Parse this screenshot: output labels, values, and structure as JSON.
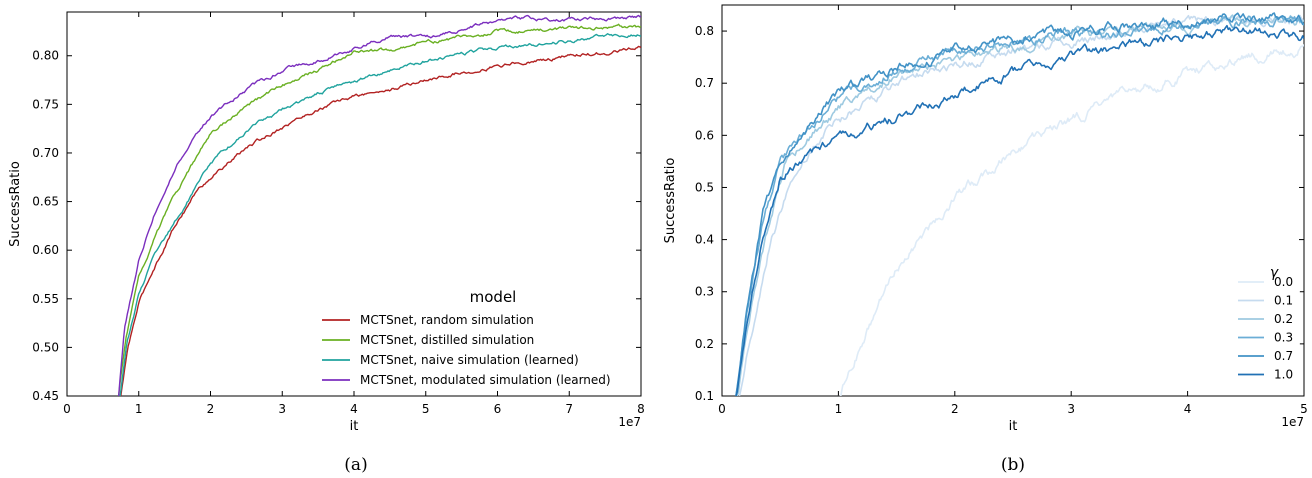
{
  "chart_data": [
    {
      "type": "line",
      "panel_label": "(a)",
      "xlabel": "it",
      "ylabel": "SuccessRatio",
      "x_multiplier_label": "1e7",
      "xlim": [
        0,
        8
      ],
      "ylim": [
        0.45,
        0.845
      ],
      "xticks": [
        0,
        1,
        2,
        3,
        4,
        5,
        6,
        7,
        8
      ],
      "yticks": [
        0.45,
        0.5,
        0.55,
        0.6,
        0.65,
        0.7,
        0.75,
        0.8
      ],
      "ytick_labels": [
        "0.45",
        "0.50",
        "0.55",
        "0.60",
        "0.65",
        "0.70",
        "0.75",
        "0.80"
      ],
      "legend": {
        "title": "model",
        "position": "lower-right"
      },
      "series": [
        {
          "name": "MCTSnet, random simulation",
          "color": "#b22222",
          "x": [
            0.75,
            0.85,
            1.0,
            1.2,
            1.5,
            1.8,
            2.0,
            2.5,
            3.0,
            3.5,
            4.0,
            4.5,
            5.0,
            5.5,
            6.0,
            6.5,
            7.0,
            7.5,
            8.0
          ],
          "y": [
            0.45,
            0.5,
            0.545,
            0.58,
            0.625,
            0.66,
            0.675,
            0.705,
            0.727,
            0.745,
            0.758,
            0.765,
            0.775,
            0.783,
            0.79,
            0.795,
            0.8,
            0.803,
            0.808
          ]
        },
        {
          "name": "MCTSnet, distilled simulation",
          "color": "#6ab023",
          "x": [
            0.72,
            0.82,
            1.0,
            1.2,
            1.5,
            1.8,
            2.0,
            2.5,
            3.0,
            3.5,
            4.0,
            4.5,
            5.0,
            5.5,
            6.0,
            6.5,
            7.0,
            7.5,
            8.0
          ],
          "y": [
            0.45,
            0.51,
            0.575,
            0.61,
            0.655,
            0.695,
            0.72,
            0.748,
            0.77,
            0.785,
            0.805,
            0.805,
            0.815,
            0.818,
            0.825,
            0.826,
            0.828,
            0.83,
            0.829
          ]
        },
        {
          "name": "MCTSnet, naive simulation (learned)",
          "color": "#20a39e",
          "x": [
            0.74,
            0.84,
            1.0,
            1.2,
            1.5,
            1.8,
            2.0,
            2.5,
            3.0,
            3.5,
            4.0,
            4.5,
            5.0,
            5.5,
            6.0,
            6.5,
            7.0,
            7.5,
            8.0
          ],
          "y": [
            0.45,
            0.505,
            0.555,
            0.59,
            0.628,
            0.665,
            0.69,
            0.722,
            0.745,
            0.762,
            0.773,
            0.785,
            0.795,
            0.802,
            0.808,
            0.812,
            0.815,
            0.82,
            0.823
          ]
        },
        {
          "name": "MCTSnet, modulated simulation (learned)",
          "color": "#7b2fbe",
          "x": [
            0.72,
            0.8,
            1.0,
            1.2,
            1.5,
            1.8,
            2.0,
            2.5,
            3.0,
            3.5,
            4.0,
            4.5,
            5.0,
            5.5,
            6.0,
            6.5,
            7.0,
            7.5,
            8.0
          ],
          "y": [
            0.45,
            0.52,
            0.59,
            0.635,
            0.685,
            0.72,
            0.738,
            0.765,
            0.785,
            0.795,
            0.808,
            0.82,
            0.818,
            0.827,
            0.835,
            0.838,
            0.837,
            0.838,
            0.84
          ]
        }
      ]
    },
    {
      "type": "line",
      "panel_label": "(b)",
      "xlabel": "it",
      "ylabel": "SuccessRatio",
      "x_multiplier_label": "1e7",
      "xlim": [
        0,
        5
      ],
      "ylim": [
        0.1,
        0.85
      ],
      "xticks": [
        0,
        1,
        2,
        3,
        4,
        5
      ],
      "yticks": [
        0.1,
        0.2,
        0.3,
        0.4,
        0.5,
        0.6,
        0.7,
        0.8
      ],
      "ytick_labels": [
        "0.1",
        "0.2",
        "0.3",
        "0.4",
        "0.5",
        "0.6",
        "0.7",
        "0.8"
      ],
      "legend": {
        "title": "γ",
        "position": "lower-right"
      },
      "series": [
        {
          "name": "0.0",
          "color": "#deebf7",
          "x": [
            1.0,
            1.2,
            1.5,
            2.0,
            2.5,
            3.0,
            3.5,
            4.0,
            4.5,
            5.0
          ],
          "y": [
            0.1,
            0.2,
            0.35,
            0.48,
            0.57,
            0.63,
            0.68,
            0.72,
            0.75,
            0.77
          ]
        },
        {
          "name": "0.1",
          "color": "#c6dbef",
          "x": [
            0.15,
            0.25,
            0.4,
            0.6,
            0.8,
            1.0,
            1.5,
            2.0,
            2.5,
            3.0,
            3.5,
            4.0,
            4.5,
            5.0
          ],
          "y": [
            0.1,
            0.22,
            0.38,
            0.52,
            0.58,
            0.63,
            0.7,
            0.74,
            0.76,
            0.78,
            0.8,
            0.81,
            0.82,
            0.82
          ]
        },
        {
          "name": "0.2",
          "color": "#9ecae1",
          "x": [
            0.13,
            0.22,
            0.37,
            0.55,
            0.75,
            1.0,
            1.5,
            2.0,
            2.5,
            3.0,
            3.5,
            4.0,
            4.5,
            5.0
          ],
          "y": [
            0.1,
            0.24,
            0.4,
            0.55,
            0.6,
            0.65,
            0.72,
            0.75,
            0.77,
            0.79,
            0.8,
            0.81,
            0.82,
            0.82
          ]
        },
        {
          "name": "0.3",
          "color": "#6baed6",
          "x": [
            0.12,
            0.2,
            0.35,
            0.5,
            0.7,
            1.0,
            1.5,
            2.0,
            2.5,
            3.0,
            3.5,
            4.0,
            4.5,
            5.0
          ],
          "y": [
            0.1,
            0.25,
            0.43,
            0.55,
            0.6,
            0.67,
            0.73,
            0.76,
            0.78,
            0.8,
            0.8,
            0.82,
            0.82,
            0.82
          ]
        },
        {
          "name": "0.7",
          "color": "#4292c6",
          "x": [
            0.12,
            0.2,
            0.35,
            0.5,
            0.7,
            1.0,
            1.5,
            2.0,
            2.5,
            3.0,
            3.5,
            4.0,
            4.5,
            5.0
          ],
          "y": [
            0.1,
            0.24,
            0.45,
            0.55,
            0.61,
            0.68,
            0.73,
            0.76,
            0.78,
            0.8,
            0.81,
            0.82,
            0.83,
            0.82
          ]
        },
        {
          "name": "1.0",
          "color": "#2171b5",
          "x": [
            0.12,
            0.2,
            0.35,
            0.5,
            0.75,
            1.0,
            1.3,
            1.6,
            2.0,
            2.5,
            3.0,
            3.5,
            4.0,
            4.5,
            5.0
          ],
          "y": [
            0.1,
            0.22,
            0.4,
            0.52,
            0.56,
            0.59,
            0.62,
            0.64,
            0.68,
            0.72,
            0.75,
            0.77,
            0.79,
            0.8,
            0.79
          ]
        }
      ]
    }
  ]
}
